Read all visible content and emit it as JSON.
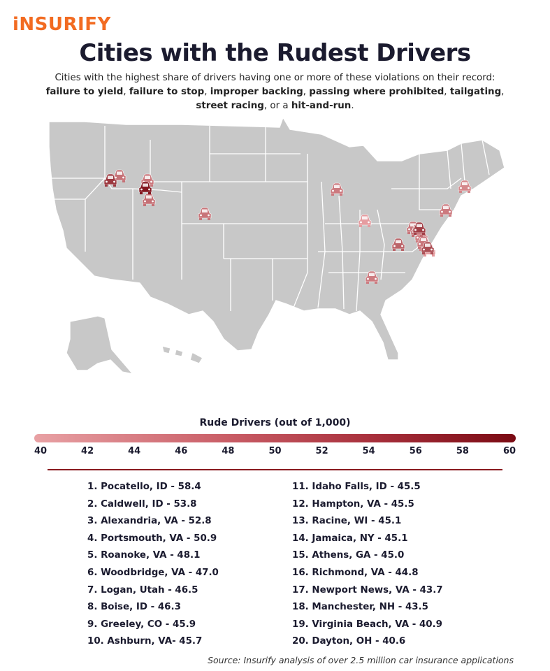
{
  "brand": {
    "logo": "iNSURIFY"
  },
  "header": {
    "title": "Cities with the Rudest Drivers",
    "subtitle_intro": "Cities with the highest share of drivers having one or more of these violations on their record:",
    "violations": [
      "failure to yield",
      "failure to stop",
      "improper backing",
      "passing where prohibited",
      "tailgating",
      "street racing",
      "hit-and-run"
    ],
    "sep": ", ",
    "or": ", or a ",
    "end": "."
  },
  "legend": {
    "title": "Rude Drivers (out of 1,000)",
    "ticks": [
      "40",
      "42",
      "44",
      "46",
      "48",
      "50",
      "52",
      "54",
      "56",
      "58",
      "60"
    ],
    "min": 40,
    "max": 60,
    "color_low": "#e8a1a4",
    "color_high": "#7a0a13"
  },
  "rankings_left": [
    "1. Pocatello, ID - 58.4",
    "2. Caldwell, ID - 53.8",
    "3. Alexandria, VA - 52.8",
    "4. Portsmouth, VA - 50.9",
    "5. Roanoke, VA - 48.1",
    "6. Woodbridge, VA - 47.0",
    "7. Logan, Utah - 46.5",
    "8. Boise, ID - 46.3",
    "9. Greeley, CO - 45.9",
    "10. Ashburn, VA- 45.7"
  ],
  "rankings_right": [
    "11. Idaho Falls, ID - 45.5",
    "12. Hampton, VA - 45.5",
    "13. Racine, WI - 45.1",
    "14. Jamaica, NY - 45.1",
    "15. Athens, GA - 45.0",
    "16. Richmond, VA - 44.8",
    "17. Newport News, VA - 43.7",
    "18. Manchester, NH - 43.5",
    "19. Virginia Beach, VA - 40.9",
    "20. Dayton, OH - 40.6"
  ],
  "map_markers": [
    {
      "rank": 1,
      "value": 58.4
    },
    {
      "rank": 2,
      "value": 53.8
    },
    {
      "rank": 3,
      "value": 52.8
    },
    {
      "rank": 4,
      "value": 50.9
    },
    {
      "rank": 5,
      "value": 48.1
    },
    {
      "rank": 6,
      "value": 47.0
    },
    {
      "rank": 7,
      "value": 46.5
    },
    {
      "rank": 8,
      "value": 46.3
    },
    {
      "rank": 9,
      "value": 45.9
    },
    {
      "rank": 10,
      "value": 45.7
    },
    {
      "rank": 11,
      "value": 45.5
    },
    {
      "rank": 12,
      "value": 45.5
    },
    {
      "rank": 13,
      "value": 45.1
    },
    {
      "rank": 14,
      "value": 45.1
    },
    {
      "rank": 15,
      "value": 45.0
    },
    {
      "rank": 16,
      "value": 44.8
    },
    {
      "rank": 17,
      "value": 43.7
    },
    {
      "rank": 18,
      "value": 43.5
    },
    {
      "rank": 19,
      "value": 40.9
    },
    {
      "rank": 20,
      "value": 40.6
    }
  ],
  "map_color": "#c8c8c8",
  "source": "Source: Insurify analysis of over 2.5 million car insurance applications"
}
